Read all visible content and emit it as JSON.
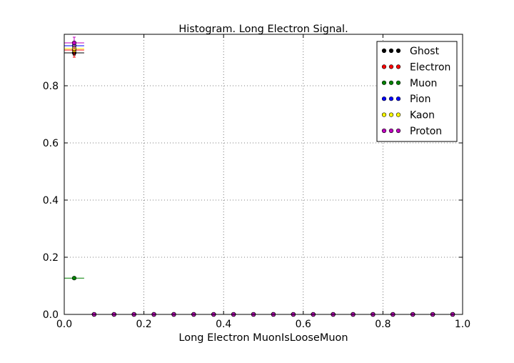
{
  "chart_data": {
    "type": "scatter",
    "title": "Histogram. Long Electron Signal.",
    "xlabel": "Long Electron MuonIsLooseMuon",
    "ylabel": "",
    "xlim": [
      0.0,
      1.0
    ],
    "ylim": [
      0.0,
      0.98
    ],
    "xticks": [
      0.0,
      0.2,
      0.4,
      0.6,
      0.8,
      1.0
    ],
    "xtick_labels": [
      "0.0",
      "0.2",
      "0.4",
      "0.6",
      "0.8",
      "1.0"
    ],
    "yticks": [
      0.0,
      0.2,
      0.4,
      0.6,
      0.8
    ],
    "ytick_labels": [
      "0.0",
      "0.2",
      "0.4",
      "0.6",
      "0.8"
    ],
    "grid": true,
    "legend_position": "top-right",
    "x": [
      0.025,
      0.075,
      0.125,
      0.175,
      0.225,
      0.275,
      0.325,
      0.375,
      0.425,
      0.475,
      0.525,
      0.575,
      0.625,
      0.675,
      0.725,
      0.775,
      0.825,
      0.875,
      0.925,
      0.975
    ],
    "x_error": 0.025,
    "series": [
      {
        "name": "Ghost",
        "color": "#000000",
        "values": [
          0.915,
          0,
          0,
          0,
          0,
          0,
          0,
          0,
          0,
          0,
          0,
          0,
          0,
          0,
          0,
          0,
          0,
          0,
          0,
          0
        ],
        "y_error_first": 0.008
      },
      {
        "name": "Electron",
        "color": "#ff0000",
        "values": [
          0.925,
          0,
          0,
          0,
          0,
          0,
          0,
          0,
          0,
          0,
          0,
          0,
          0,
          0,
          0,
          0,
          0,
          0,
          0,
          0
        ],
        "y_error_first": 0.025
      },
      {
        "name": "Muon",
        "color": "#008000",
        "values": [
          0.127,
          0,
          0,
          0,
          0,
          0,
          0,
          0,
          0,
          0,
          0,
          0,
          0,
          0,
          0,
          0,
          0,
          0,
          0,
          0
        ],
        "y_error_first": 0.003
      },
      {
        "name": "Pion",
        "color": "#0000ff",
        "values": [
          0.94,
          0,
          0,
          0,
          0,
          0,
          0,
          0,
          0,
          0,
          0,
          0,
          0,
          0,
          0,
          0,
          0,
          0,
          0,
          0
        ],
        "y_error_first": 0.005
      },
      {
        "name": "Kaon",
        "color": "#ffff00",
        "values": [
          0.93,
          0,
          0,
          0,
          0,
          0,
          0,
          0,
          0,
          0,
          0,
          0,
          0,
          0,
          0,
          0,
          0,
          0,
          0,
          0
        ],
        "y_error_first": 0.01
      },
      {
        "name": "Proton",
        "color": "#bf00bf",
        "values": [
          0.95,
          0,
          0,
          0,
          0,
          0,
          0,
          0,
          0,
          0,
          0,
          0,
          0,
          0,
          0,
          0,
          0,
          0,
          0,
          0
        ],
        "y_error_first": 0.02
      }
    ]
  }
}
